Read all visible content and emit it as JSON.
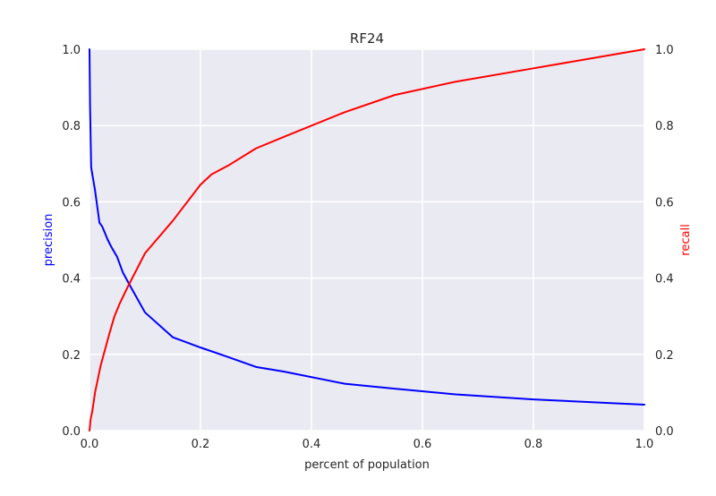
{
  "chart_data": {
    "type": "line",
    "title": "RF24",
    "xlabel": "percent of population",
    "ylabel_left": "precision",
    "ylabel_right": "recall",
    "xlim": [
      0.0,
      1.0
    ],
    "ylim_left": [
      0.0,
      1.0
    ],
    "ylim_right": [
      0.0,
      1.0
    ],
    "x_ticks": [
      "0.0",
      "0.2",
      "0.4",
      "0.6",
      "0.8",
      "1.0"
    ],
    "y_left_ticks": [
      "0.0",
      "0.2",
      "0.4",
      "0.6",
      "0.8",
      "1.0"
    ],
    "y_right_ticks": [
      "0.0",
      "0.2",
      "0.4",
      "0.6",
      "0.8",
      "1.0"
    ],
    "grid": true,
    "series": [
      {
        "name": "precision",
        "axis": "left",
        "color": "#0000ff",
        "points": [
          [
            0.0,
            1.0
          ],
          [
            0.001,
            0.85
          ],
          [
            0.003,
            0.69
          ],
          [
            0.01,
            0.63
          ],
          [
            0.018,
            0.545
          ],
          [
            0.023,
            0.535
          ],
          [
            0.033,
            0.5
          ],
          [
            0.04,
            0.48
          ],
          [
            0.05,
            0.455
          ],
          [
            0.06,
            0.415
          ],
          [
            0.075,
            0.375
          ],
          [
            0.1,
            0.31
          ],
          [
            0.15,
            0.245
          ],
          [
            0.2,
            0.218
          ],
          [
            0.25,
            0.193
          ],
          [
            0.3,
            0.167
          ],
          [
            0.35,
            0.155
          ],
          [
            0.46,
            0.123
          ],
          [
            0.55,
            0.11
          ],
          [
            0.66,
            0.095
          ],
          [
            0.8,
            0.082
          ],
          [
            1.0,
            0.068
          ]
        ]
      },
      {
        "name": "recall",
        "axis": "right",
        "color": "#ff0000",
        "points": [
          [
            0.0,
            0.0
          ],
          [
            0.002,
            0.03
          ],
          [
            0.005,
            0.05
          ],
          [
            0.01,
            0.1
          ],
          [
            0.02,
            0.17
          ],
          [
            0.035,
            0.25
          ],
          [
            0.045,
            0.3
          ],
          [
            0.055,
            0.335
          ],
          [
            0.07,
            0.38
          ],
          [
            0.1,
            0.465
          ],
          [
            0.15,
            0.55
          ],
          [
            0.2,
            0.645
          ],
          [
            0.22,
            0.672
          ],
          [
            0.25,
            0.695
          ],
          [
            0.3,
            0.74
          ],
          [
            0.35,
            0.77
          ],
          [
            0.46,
            0.835
          ],
          [
            0.55,
            0.88
          ],
          [
            0.66,
            0.915
          ],
          [
            0.8,
            0.95
          ],
          [
            1.0,
            1.0
          ]
        ]
      }
    ]
  }
}
